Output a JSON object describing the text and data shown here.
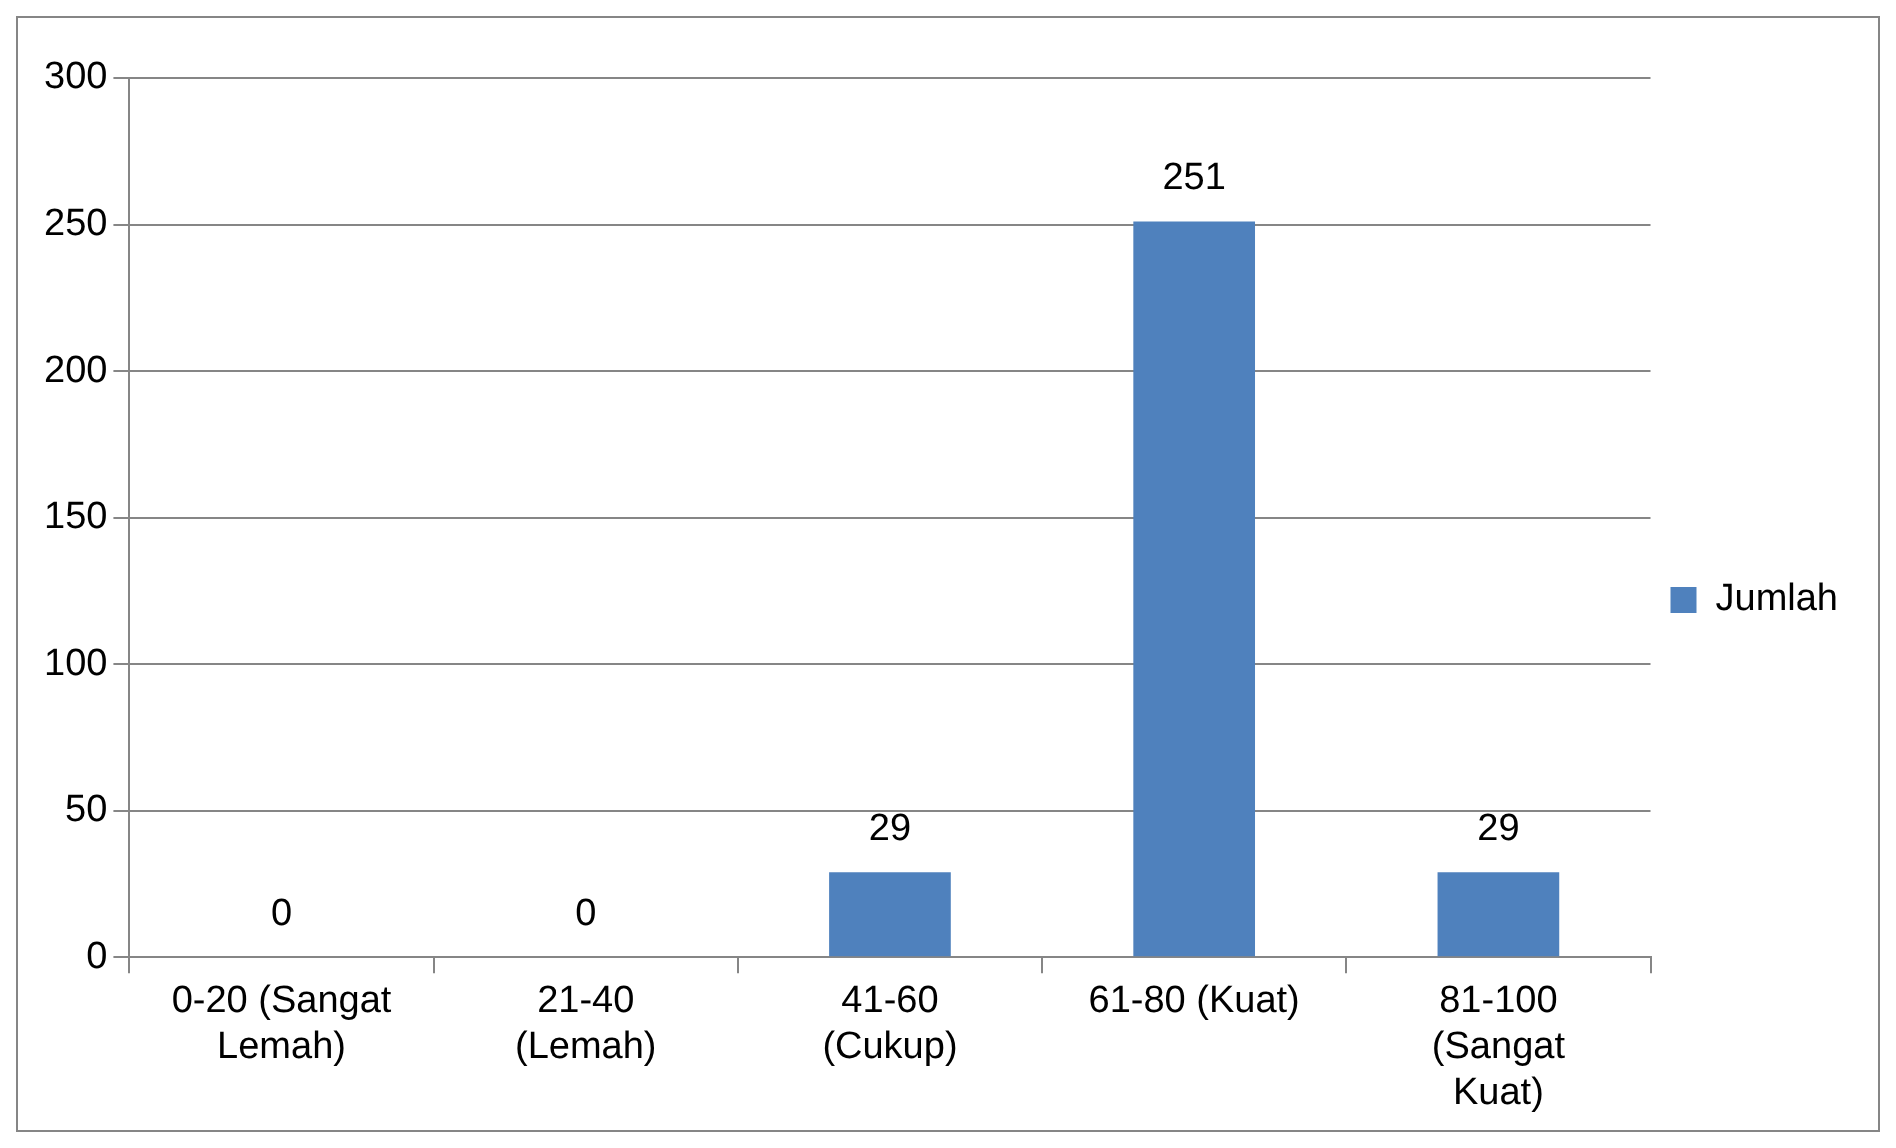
{
  "chart_data": {
    "type": "bar",
    "categories": [
      "0-20 (Sangat Lemah)",
      "21-40 (Lemah)",
      "41-60 (Cukup)",
      "61-80 (Kuat)",
      "81-100 (Sangat Kuat)"
    ],
    "series": [
      {
        "name": "Jumlah",
        "color": "#4f81bd",
        "values": [
          0,
          0,
          29,
          251,
          29
        ]
      }
    ],
    "ylim": [
      0,
      300
    ],
    "yticks": [
      0,
      50,
      100,
      150,
      200,
      250,
      300
    ],
    "grid": "y",
    "legend": "right",
    "data_labels": true
  }
}
